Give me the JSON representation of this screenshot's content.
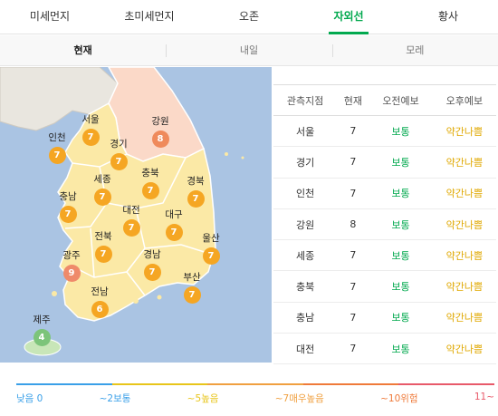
{
  "top_tabs": [
    {
      "label": "미세먼지",
      "active": false
    },
    {
      "label": "초미세먼지",
      "active": false
    },
    {
      "label": "오존",
      "active": false
    },
    {
      "label": "자외선",
      "active": true
    },
    {
      "label": "황사",
      "active": false
    }
  ],
  "sub_tabs": [
    {
      "label": "현재",
      "active": true
    },
    {
      "label": "내일",
      "active": false
    },
    {
      "label": "모레",
      "active": false
    }
  ],
  "map": {
    "regions": [
      {
        "name": "서울",
        "value": "7",
        "color": "#f5a623"
      },
      {
        "name": "강원",
        "value": "8",
        "color": "#ef8a5b"
      },
      {
        "name": "인천",
        "value": "7",
        "color": "#f5a623"
      },
      {
        "name": "경기",
        "value": "7",
        "color": "#f5a623"
      },
      {
        "name": "세종",
        "value": "7",
        "color": "#f5a623"
      },
      {
        "name": "충북",
        "value": "7",
        "color": "#f5a623"
      },
      {
        "name": "경북",
        "value": "7",
        "color": "#f5a623"
      },
      {
        "name": "충남",
        "value": "7",
        "color": "#f5a623"
      },
      {
        "name": "대전",
        "value": "7",
        "color": "#f5a623"
      },
      {
        "name": "대구",
        "value": "7",
        "color": "#f5a623"
      },
      {
        "name": "전북",
        "value": "7",
        "color": "#f5a623"
      },
      {
        "name": "울산",
        "value": "7",
        "color": "#f5a623"
      },
      {
        "name": "광주",
        "value": "9",
        "color": "#ef8a6a"
      },
      {
        "name": "경남",
        "value": "7",
        "color": "#f5a623"
      },
      {
        "name": "부산",
        "value": "7",
        "color": "#f5a623"
      },
      {
        "name": "전남",
        "value": "6",
        "color": "#f5a623"
      },
      {
        "name": "제주",
        "value": "4",
        "color": "#7cc47a"
      }
    ]
  },
  "table": {
    "headers": [
      "관측지점",
      "현재",
      "오전예보",
      "오후예보"
    ],
    "rows": [
      {
        "location": "서울",
        "current": "7",
        "am": "보통",
        "pm": "약간나쁨"
      },
      {
        "location": "경기",
        "current": "7",
        "am": "보통",
        "pm": "약간나쁨"
      },
      {
        "location": "인천",
        "current": "7",
        "am": "보통",
        "pm": "약간나쁨"
      },
      {
        "location": "강원",
        "current": "8",
        "am": "보통",
        "pm": "약간나쁨"
      },
      {
        "location": "세종",
        "current": "7",
        "am": "보통",
        "pm": "약간나쁨"
      },
      {
        "location": "충북",
        "current": "7",
        "am": "보통",
        "pm": "약간나쁨"
      },
      {
        "location": "충남",
        "current": "7",
        "am": "보통",
        "pm": "약간나쁨"
      },
      {
        "location": "대전",
        "current": "7",
        "am": "보통",
        "pm": "약간나쁨"
      }
    ]
  },
  "legend": [
    {
      "label": "낮음 0",
      "color": "#3aa0e8"
    },
    {
      "label": "~2보통",
      "color": "#3aa0e8"
    },
    {
      "label": "~5높음",
      "color": "#e8c51a"
    },
    {
      "label": "~7매우높음",
      "color": "#f0a040"
    },
    {
      "label": "~10위험",
      "color": "#ef7a3a"
    },
    {
      "label": "11~",
      "color": "#e85a6a"
    }
  ],
  "colors": {
    "accent": "#03a94f",
    "good_text": "#03a94f",
    "bad_text": "#e0a800",
    "sea": "#aac4e3",
    "land": "#fbe9a6",
    "gangwon_land": "#fbd9c8",
    "jeju_land": "#c8e6b8"
  }
}
